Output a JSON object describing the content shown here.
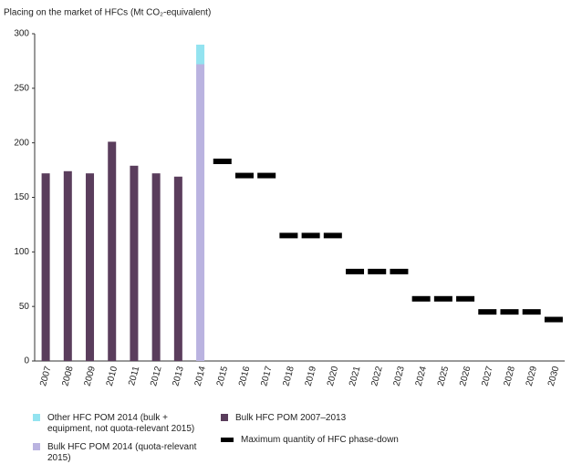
{
  "chart_data": {
    "type": "bar",
    "title": "Placing on the market of HFCs (Mt CO₂-equivalent)",
    "categories": [
      "2007",
      "2008",
      "2009",
      "2010",
      "2011",
      "2012",
      "2013",
      "2014",
      "2015",
      "2016",
      "2017",
      "2018",
      "2019",
      "2020",
      "2021",
      "2022",
      "2023",
      "2024",
      "2025",
      "2026",
      "2027",
      "2028",
      "2029",
      "2030"
    ],
    "series": [
      {
        "name": "Bulk HFC POM 2007–2013",
        "color": "#5a3d5c",
        "type": "bar",
        "values": [
          172,
          174,
          172,
          201,
          179,
          172,
          169,
          null,
          null,
          null,
          null,
          null,
          null,
          null,
          null,
          null,
          null,
          null,
          null,
          null,
          null,
          null,
          null,
          null
        ]
      },
      {
        "name": "Bulk HFC POM 2014 (quota-relevant 2015)",
        "color": "#bab3e0",
        "type": "bar",
        "values": [
          null,
          null,
          null,
          null,
          null,
          null,
          null,
          272,
          null,
          null,
          null,
          null,
          null,
          null,
          null,
          null,
          null,
          null,
          null,
          null,
          null,
          null,
          null,
          null
        ]
      },
      {
        "name": "Other HFC POM 2014 (bulk + equipment, not quota-relevant 2015)",
        "color": "#93e3f0",
        "type": "bar",
        "values": [
          null,
          null,
          null,
          null,
          null,
          null,
          null,
          18,
          null,
          null,
          null,
          null,
          null,
          null,
          null,
          null,
          null,
          null,
          null,
          null,
          null,
          null,
          null,
          null
        ]
      },
      {
        "name": "Maximum quantity of HFC phase-down",
        "color": "#000000",
        "type": "marker",
        "values": [
          null,
          null,
          null,
          null,
          null,
          null,
          null,
          null,
          183,
          170,
          170,
          115,
          115,
          115,
          82,
          82,
          82,
          57,
          57,
          57,
          45,
          45,
          45,
          38
        ]
      }
    ],
    "ylim": [
      0,
      300
    ],
    "yticks": [
      0,
      50,
      100,
      150,
      200,
      250,
      300
    ],
    "grid": false
  }
}
